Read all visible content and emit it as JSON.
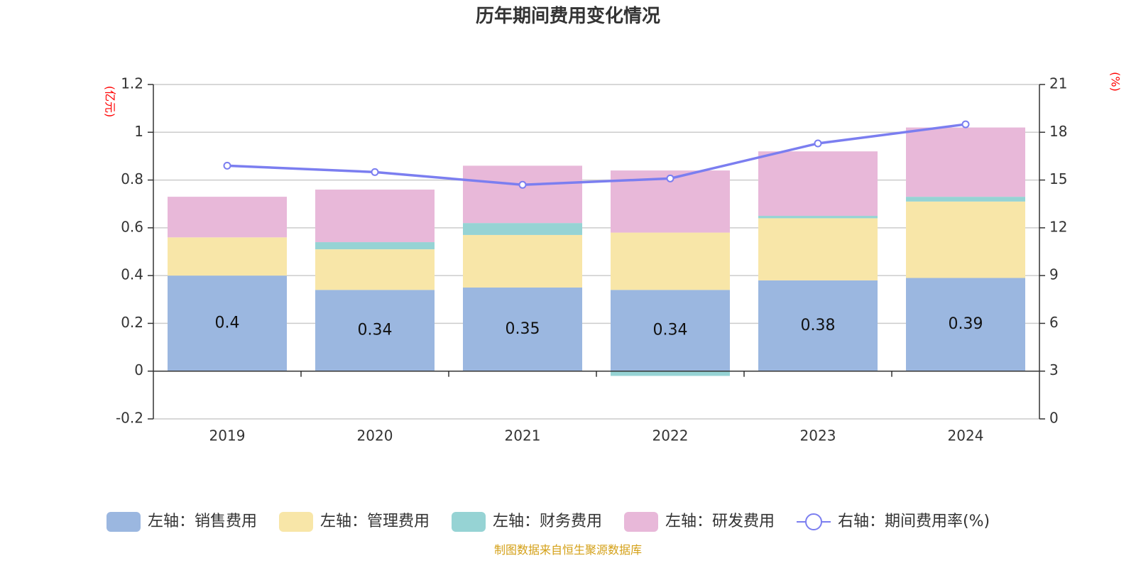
{
  "chart_data": {
    "type": "bar",
    "title": "历年期间费用变化情况",
    "categories": [
      "2019",
      "2020",
      "2021",
      "2022",
      "2023",
      "2024"
    ],
    "left_axis": {
      "unit": "(亿元)",
      "ylim": [
        -0.2,
        1.2
      ],
      "ticks": [
        "-0.2",
        "0",
        "0.2",
        "0.4",
        "0.6",
        "0.8",
        "1",
        "1.2"
      ]
    },
    "right_axis": {
      "unit": "(%)",
      "ylim": [
        0,
        21
      ],
      "ticks": [
        "0",
        "3",
        "6",
        "9",
        "12",
        "15",
        "18",
        "21"
      ]
    },
    "series": [
      {
        "name": "左轴：销售费用",
        "type": "bar",
        "stack": true,
        "color": "#9bb7e0",
        "values": [
          0.4,
          0.34,
          0.35,
          0.34,
          0.38,
          0.39
        ],
        "labels": [
          "0.4",
          "0.34",
          "0.35",
          "0.34",
          "0.38",
          "0.39"
        ]
      },
      {
        "name": "左轴：管理费用",
        "type": "bar",
        "stack": true,
        "color": "#f8e6a8",
        "values": [
          0.16,
          0.17,
          0.22,
          0.24,
          0.26,
          0.32
        ]
      },
      {
        "name": "左轴：财务费用",
        "type": "bar",
        "stack": true,
        "color": "#96d3d4",
        "values": [
          0.0,
          0.03,
          0.05,
          -0.02,
          0.01,
          0.02
        ]
      },
      {
        "name": "左轴：研发费用",
        "type": "bar",
        "stack": true,
        "color": "#e8b8d9",
        "values": [
          0.17,
          0.22,
          0.24,
          0.26,
          0.27,
          0.29
        ]
      },
      {
        "name": "右轴：期间费用率(%)",
        "type": "line",
        "axis": "right",
        "color": "#7b7ef0",
        "values": [
          15.9,
          15.5,
          14.7,
          15.1,
          17.3,
          18.5
        ]
      }
    ],
    "grid": true,
    "legend_position": "bottom"
  },
  "source_text": "制图数据来自恒生聚源数据库",
  "source_color": "#d4a017"
}
